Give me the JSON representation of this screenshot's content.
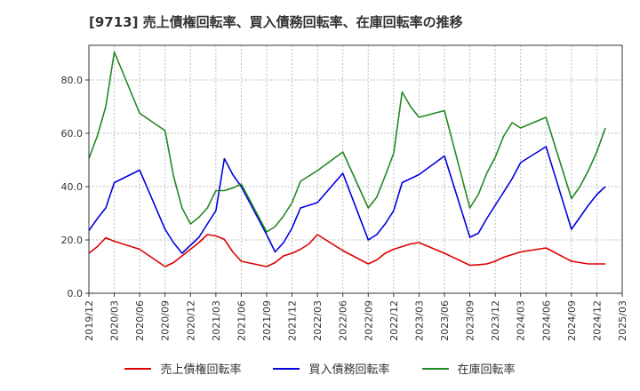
{
  "chart_data": {
    "type": "line",
    "title": "[9713]  売上債権回転率、買入債務回転率、在庫回転率の推移",
    "xlabel": "",
    "ylabel": "",
    "ylim": [
      0,
      93
    ],
    "yticks": [
      0.0,
      20.0,
      40.0,
      60.0,
      80.0
    ],
    "ytick_labels": [
      "0.0",
      "20.0",
      "40.0",
      "60.0",
      "80.0"
    ],
    "xlim": [
      0,
      63
    ],
    "xtick_labels": [
      "2019/12",
      "2020/03",
      "2020/06",
      "2020/09",
      "2020/12",
      "2021/03",
      "2021/06",
      "2021/09",
      "2021/12",
      "2022/03",
      "2022/06",
      "2022/09",
      "2022/12",
      "2023/03",
      "2023/06",
      "2023/09",
      "2023/12",
      "2024/03",
      "2024/06",
      "2024/09",
      "2024/12",
      "2025/03"
    ],
    "grid": true,
    "legend_position": "bottom",
    "series": [
      {
        "name": "売上債権回転率",
        "color": "#dd0000",
        "x": [
          0,
          1,
          2,
          3,
          6,
          9,
          10,
          11,
          12,
          13,
          14,
          15,
          16,
          17,
          18,
          21,
          22,
          23,
          24,
          25,
          26,
          27,
          30,
          33,
          34,
          35,
          36,
          37,
          38,
          39,
          42,
          45,
          46,
          47,
          48,
          49,
          50,
          51,
          54,
          57,
          58,
          59,
          60,
          61
        ],
        "values": [
          15,
          17.5,
          20.8,
          19.5,
          16.5,
          10,
          11.5,
          14,
          16.5,
          19,
          22,
          21.5,
          20.2,
          15.5,
          12,
          10,
          11.5,
          14,
          15,
          16.5,
          18.5,
          22,
          16,
          11,
          12.5,
          15,
          16.5,
          17.5,
          18.5,
          19,
          15,
          10.5,
          10.7,
          11,
          12,
          13.5,
          14.5,
          15.5,
          17,
          12,
          11.5,
          11,
          11,
          11
        ]
      },
      {
        "name": "買入債務回転率",
        "color": "#0000dd",
        "x": [
          0,
          1,
          2,
          3,
          6,
          9,
          10,
          11,
          12,
          13,
          14,
          15,
          16,
          17,
          18,
          21,
          22,
          23,
          24,
          25,
          26,
          27,
          30,
          33,
          34,
          35,
          36,
          37,
          38,
          39,
          42,
          45,
          46,
          47,
          48,
          49,
          50,
          51,
          54,
          57,
          58,
          59,
          60,
          61
        ],
        "values": [
          23.5,
          28,
          32,
          41.5,
          46.2,
          24,
          19,
          15,
          18,
          21,
          26,
          31,
          50.5,
          44.5,
          40,
          22,
          15.5,
          19,
          24.5,
          32,
          33,
          34,
          45,
          20,
          22,
          26,
          31,
          41.5,
          43,
          44.5,
          51.5,
          21,
          22.5,
          28,
          33,
          38,
          43,
          49,
          55,
          24,
          28.5,
          33,
          37,
          40
        ]
      },
      {
        "name": "在庫回転率",
        "color": "#228822",
        "x": [
          0,
          1,
          2,
          3,
          6,
          9,
          10,
          11,
          12,
          13,
          14,
          15,
          16,
          17,
          18,
          21,
          22,
          23,
          24,
          25,
          26,
          27,
          30,
          33,
          34,
          35,
          36,
          37,
          38,
          39,
          42,
          45,
          46,
          47,
          48,
          49,
          50,
          51,
          54,
          57,
          58,
          59,
          60,
          61
        ],
        "values": [
          50.5,
          59,
          70,
          90.5,
          67.5,
          61,
          44,
          32,
          26,
          28.5,
          32,
          38.5,
          38.5,
          39.5,
          41,
          23,
          25,
          29,
          34,
          42,
          44,
          46,
          53,
          32,
          36,
          44,
          52.5,
          75.5,
          70,
          66,
          68.5,
          32,
          37,
          45,
          51,
          59,
          64,
          62,
          66,
          35.5,
          40,
          46,
          53,
          62
        ]
      }
    ]
  }
}
